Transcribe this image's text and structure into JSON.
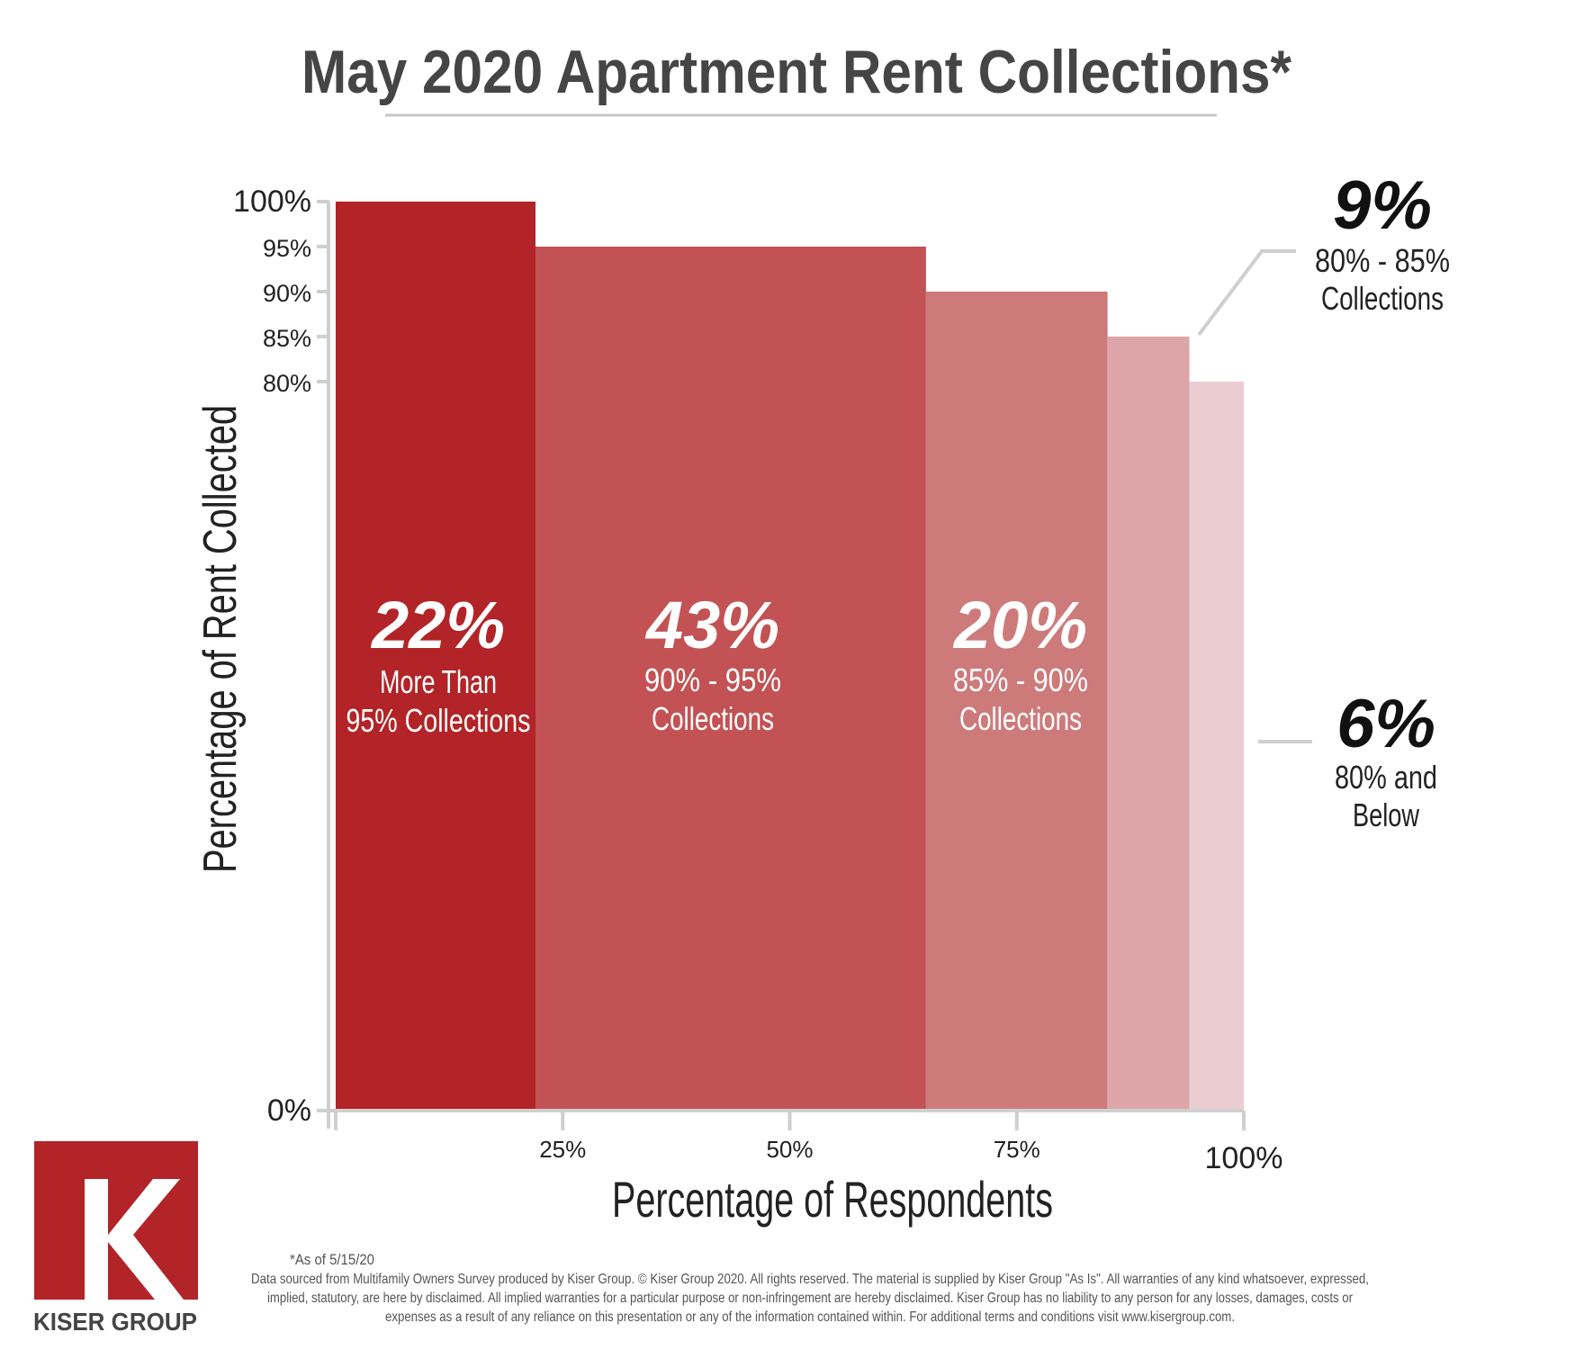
{
  "chart_data": {
    "type": "bar",
    "title": "May 2020 Apartment Rent Collections*",
    "xlabel": "Percentage of Respondents",
    "ylabel": "Percentage of Rent Collected",
    "x_ticks": [
      "25%",
      "50%",
      "75%",
      "100%"
    ],
    "x_tick_values": [
      25,
      50,
      75,
      100
    ],
    "y_ticks": [
      "100%",
      "95%",
      "90%",
      "85%",
      "80%",
      "0%"
    ],
    "y_tick_values": [
      100,
      95,
      90,
      85,
      80,
      0
    ],
    "xlim": [
      0,
      100
    ],
    "ylim": [
      0,
      100
    ],
    "y_display_break": 80,
    "segments": [
      {
        "value_label": "22%",
        "line1": "More Than",
        "line2": "95% Collections",
        "share": 22,
        "rent_level": 100,
        "color": "#b22427"
      },
      {
        "value_label": "43%",
        "line1": "90% - 95%",
        "line2": "Collections",
        "share": 43,
        "rent_level": 95,
        "color": "#c25254"
      },
      {
        "value_label": "20%",
        "line1": "85% - 90%",
        "line2": "Collections",
        "share": 20,
        "rent_level": 90,
        "color": "#cd7a7b"
      },
      {
        "value_label": "9%",
        "line1": "80% - 85%",
        "line2": "Collections",
        "share": 9,
        "rent_level": 85,
        "color": "#dda5a8"
      },
      {
        "value_label": "6%",
        "line1": "80% and",
        "line2": "Below",
        "share": 6,
        "rent_level": 80,
        "color": "#eacdd1"
      }
    ]
  },
  "footnote": {
    "asof": "*As of 5/15/20",
    "line1": "Data sourced from Multifamily Owners Survey produced by Kiser Group. © Kiser Group 2020. All rights reserved. The material is supplied by Kiser Group \"As Is\". All warranties of any kind whatsoever, expressed,",
    "line2": "implied, statutory, are here by disclaimed. All implied warranties for a particular purpose or non-infringement are hereby disclaimed. Kiser Group has no liability to any person for any losses, damages, costs or",
    "line3": "expenses as a result of any reliance on this presentation or any of the information contained within. For additional terms and conditions visit www.kisergroup.com."
  },
  "logo": {
    "letter": "K",
    "text": "KISER GROUP",
    "color": "#b22427"
  },
  "colors": {
    "axis": "#cfcfcf",
    "text": "#222222",
    "title": "#454545"
  }
}
